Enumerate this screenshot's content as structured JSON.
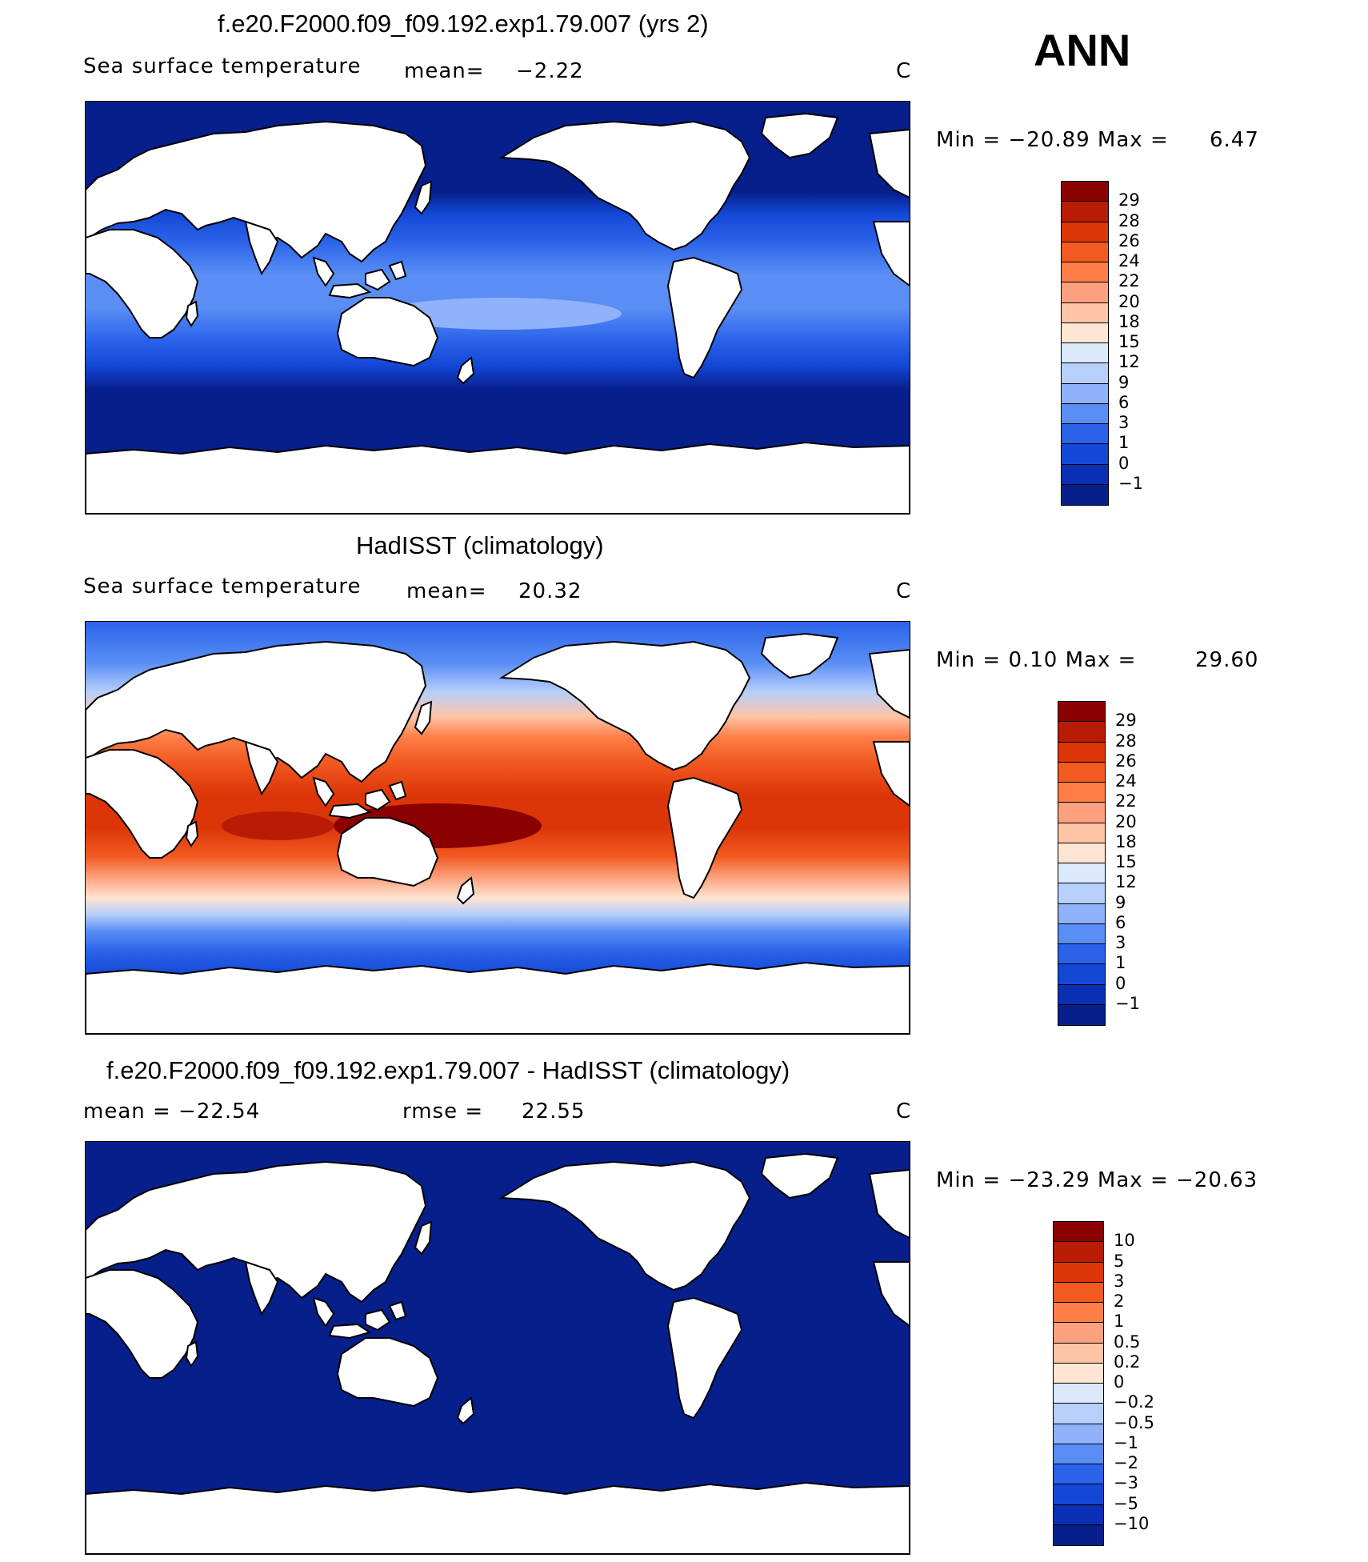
{
  "season": "ANN",
  "panels": [
    {
      "title": "f.e20.F2000.f09_f09.192.exp1.79.007 (yrs 2)",
      "left_label": "Sea surface temperature",
      "mean_label": "mean=",
      "mean_value": "−2.22",
      "units": "C",
      "minmax_label": "Min = −20.89 Max =",
      "max_value": "6.47",
      "field": "model",
      "colorbar_labels": [
        "29",
        "28",
        "26",
        "24",
        "22",
        "20",
        "18",
        "15",
        "12",
        "9",
        "6",
        "3",
        "1",
        "0",
        "−1"
      ],
      "colorbar_colors": [
        "#8b0000",
        "#b81c05",
        "#dc3608",
        "#f25a22",
        "#ff7e48",
        "#fda07d",
        "#fec4a6",
        "#fee4d2",
        "#dbe9fb",
        "#b6cffb",
        "#8fb2fa",
        "#5a8ef5",
        "#2a63ea",
        "#1347d6",
        "#0b2fb4",
        "#061f8a"
      ]
    },
    {
      "title": "HadISST (climatology)",
      "left_label": "Sea surface temperature",
      "mean_label": "mean=",
      "mean_value": "20.32",
      "units": "C",
      "minmax_label": "Min =   0.10 Max =",
      "max_value": "29.60",
      "field": "obs",
      "colorbar_labels": [
        "29",
        "28",
        "26",
        "24",
        "22",
        "20",
        "18",
        "15",
        "12",
        "9",
        "6",
        "3",
        "1",
        "0",
        "−1"
      ],
      "colorbar_colors": [
        "#8b0000",
        "#b81c05",
        "#dc3608",
        "#f25a22",
        "#ff7e48",
        "#fda07d",
        "#fec4a6",
        "#fee4d2",
        "#dbe9fb",
        "#b6cffb",
        "#8fb2fa",
        "#5a8ef5",
        "#2a63ea",
        "#1347d6",
        "#0b2fb4",
        "#061f8a"
      ]
    },
    {
      "title": "f.e20.F2000.f09_f09.192.exp1.79.007 - HadISST (climatology)",
      "left_label": "mean = −22.54",
      "mean_label": "rmse =",
      "mean_value": "22.55",
      "units": "C",
      "minmax_label": "Min = −23.29 Max = −20.63",
      "max_value": "",
      "field": "diff",
      "colorbar_labels": [
        "10",
        "5",
        "3",
        "2",
        "1",
        "0.5",
        "0.2",
        "0",
        "−0.2",
        "−0.5",
        "−1",
        "−2",
        "−3",
        "−5",
        "−10"
      ],
      "colorbar_colors": [
        "#8b0000",
        "#b81c05",
        "#dc3608",
        "#f25a22",
        "#ff7e48",
        "#fda07d",
        "#fec4a6",
        "#fee4d2",
        "#dbe9fb",
        "#b6cffb",
        "#8fb2fa",
        "#5a8ef5",
        "#2a63ea",
        "#1347d6",
        "#0b2fb4",
        "#061f8a"
      ]
    }
  ]
}
